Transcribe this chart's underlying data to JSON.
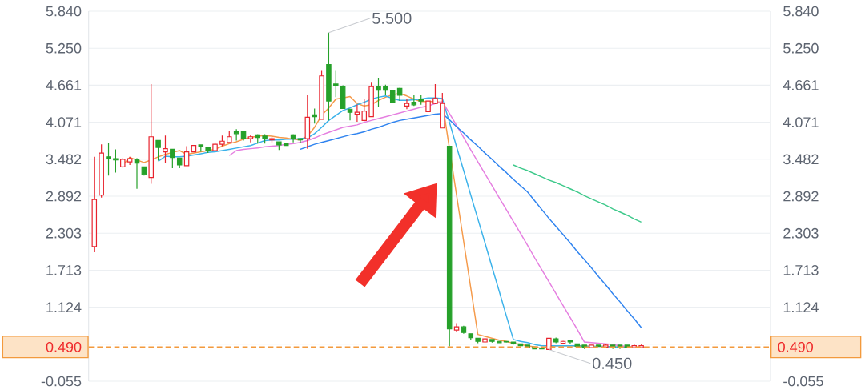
{
  "chart_data": {
    "type": "candlestick",
    "categories": [
      null,
      null,
      null,
      null,
      null,
      null,
      null,
      null,
      null,
      null,
      null,
      null,
      null,
      null,
      null,
      null,
      null,
      null,
      null,
      null,
      null,
      null,
      null,
      null,
      null,
      null,
      null,
      null,
      null,
      null,
      null,
      null,
      null,
      null,
      null,
      null,
      null,
      null,
      null,
      null,
      null,
      null,
      null,
      null,
      null,
      null,
      null,
      null,
      null,
      null,
      null,
      null,
      null,
      null,
      null,
      null,
      null,
      null,
      null,
      null,
      null,
      null,
      null,
      null,
      null,
      null,
      null,
      null,
      null,
      null,
      null,
      null,
      null,
      null,
      null,
      null,
      null,
      null
    ],
    "ohlc": [
      [
        2.09,
        3.52,
        2.0,
        2.84
      ],
      [
        2.91,
        3.72,
        2.87,
        3.58
      ],
      [
        3.52,
        3.74,
        3.22,
        3.49
      ],
      [
        3.49,
        3.64,
        3.27,
        3.47
      ],
      [
        3.36,
        3.5,
        3.35,
        3.48
      ],
      [
        3.44,
        3.52,
        3.39,
        3.49
      ],
      [
        3.48,
        3.5,
        3.01,
        3.42
      ],
      [
        3.36,
        3.36,
        3.22,
        3.24
      ],
      [
        3.19,
        4.68,
        3.09,
        3.84
      ],
      [
        3.78,
        3.78,
        3.46,
        3.67
      ],
      [
        3.6,
        3.86,
        3.42,
        3.65
      ],
      [
        3.64,
        3.64,
        3.34,
        3.51
      ],
      [
        3.5,
        3.5,
        3.34,
        3.39
      ],
      [
        3.38,
        3.69,
        3.38,
        3.6
      ],
      [
        3.6,
        3.71,
        3.6,
        3.7
      ],
      [
        3.71,
        3.71,
        3.6,
        3.68
      ],
      [
        3.67,
        3.67,
        3.58,
        3.62
      ],
      [
        3.62,
        3.75,
        3.62,
        3.72
      ],
      [
        3.72,
        3.86,
        3.69,
        3.77
      ],
      [
        3.75,
        3.94,
        3.74,
        3.84
      ],
      [
        3.92,
        3.96,
        3.78,
        3.89
      ],
      [
        3.92,
        3.92,
        3.78,
        3.81
      ],
      [
        3.81,
        3.87,
        3.75,
        3.84
      ],
      [
        3.87,
        3.88,
        3.73,
        3.83
      ],
      [
        3.85,
        3.88,
        3.73,
        3.82
      ],
      [
        3.79,
        3.84,
        3.75,
        3.81
      ],
      [
        3.76,
        3.76,
        3.63,
        3.71
      ],
      [
        3.73,
        3.73,
        3.7,
        3.7
      ],
      [
        3.87,
        3.88,
        3.75,
        3.82
      ],
      [
        3.81,
        3.81,
        3.74,
        3.79
      ],
      [
        3.81,
        4.5,
        3.65,
        4.15
      ],
      [
        4.19,
        4.29,
        4.05,
        4.16
      ],
      [
        4.12,
        4.89,
        4.11,
        4.81
      ],
      [
        4.99,
        5.5,
        4.1,
        4.41
      ],
      [
        4.68,
        4.89,
        4.47,
        4.65
      ],
      [
        4.64,
        4.66,
        4.29,
        4.29
      ],
      [
        4.28,
        4.28,
        4.1,
        4.23
      ],
      [
        4.2,
        4.35,
        4.08,
        4.23
      ],
      [
        4.1,
        4.45,
        4.09,
        4.25
      ],
      [
        4.16,
        4.7,
        4.16,
        4.64
      ],
      [
        4.64,
        4.78,
        4.31,
        4.58
      ],
      [
        4.64,
        4.67,
        4.5,
        4.58
      ],
      [
        4.57,
        4.57,
        4.38,
        4.39
      ],
      [
        4.61,
        4.62,
        4.41,
        4.5
      ],
      [
        4.33,
        4.45,
        4.28,
        4.37
      ],
      [
        4.39,
        4.5,
        4.33,
        4.35
      ],
      [
        4.43,
        4.5,
        4.35,
        4.41
      ],
      [
        4.24,
        4.41,
        4.24,
        4.41
      ],
      [
        4.37,
        4.68,
        4.36,
        4.45
      ],
      [
        3.98,
        4.54,
        3.98,
        4.37
      ],
      [
        3.69,
        3.69,
        0.5,
        0.78
      ],
      [
        0.76,
        0.87,
        0.73,
        0.81
      ],
      [
        0.81,
        0.83,
        0.7,
        0.72
      ],
      [
        0.7,
        0.7,
        0.6,
        0.64
      ],
      [
        0.63,
        0.63,
        0.55,
        0.58
      ],
      [
        0.57,
        0.63,
        0.56,
        0.62
      ],
      [
        0.61,
        0.61,
        0.56,
        0.58
      ],
      [
        0.58,
        0.58,
        0.55,
        0.56
      ],
      [
        0.58,
        0.58,
        0.56,
        0.57
      ],
      [
        0.57,
        0.57,
        0.53,
        0.54
      ],
      [
        0.54,
        0.54,
        0.5,
        0.51
      ],
      [
        0.52,
        0.52,
        0.47,
        0.48
      ],
      [
        0.49,
        0.49,
        0.46,
        0.46
      ],
      [
        0.47,
        0.47,
        0.46,
        0.46
      ],
      [
        0.45,
        0.63,
        0.45,
        0.63
      ],
      [
        0.62,
        0.64,
        0.55,
        0.57
      ],
      [
        0.55,
        0.59,
        0.55,
        0.58
      ],
      [
        0.59,
        0.59,
        0.54,
        0.57
      ],
      [
        0.54,
        0.54,
        0.48,
        0.5
      ],
      [
        0.52,
        0.52,
        0.46,
        0.49
      ],
      [
        0.48,
        0.52,
        0.47,
        0.52
      ],
      [
        0.52,
        0.52,
        0.5,
        0.5
      ],
      [
        0.49,
        0.54,
        0.48,
        0.52
      ],
      [
        0.52,
        0.52,
        0.46,
        0.49
      ],
      [
        0.52,
        0.52,
        0.46,
        0.49
      ],
      [
        0.52,
        0.52,
        0.47,
        0.49
      ],
      [
        0.48,
        0.54,
        0.47,
        0.51
      ],
      [
        0.48,
        0.53,
        0.47,
        0.51
      ]
    ],
    "colors": [
      "#e8232d",
      "#e8232d",
      "#26a12a",
      "#26a12a",
      "#e8232d",
      "#e8232d",
      "#26a12a",
      "#26a12a",
      "#e8232d",
      "#26a12a",
      "#e8232d",
      "#26a12a",
      "#26a12a",
      "#e8232d",
      "#e8232d",
      "#26a12a",
      "#26a12a",
      "#e8232d",
      "#e8232d",
      "#e8232d",
      "#26a12a",
      "#26a12a",
      "#e8232d",
      "#26a12a",
      "#26a12a",
      "#e8232d",
      "#26a12a",
      "#26a12a",
      "#26a12a",
      "#26a12a",
      "#e8232d",
      "#26a12a",
      "#e8232d",
      "#26a12a",
      "#26a12a",
      "#26a12a",
      "#26a12a",
      "#e8232d",
      "#e8232d",
      "#e8232d",
      "#26a12a",
      "#26a12a",
      "#26a12a",
      "#26a12a",
      "#e8232d",
      "#26a12a",
      "#26a12a",
      "#e8232d",
      "#e8232d",
      "#e8232d",
      "#26a12a",
      "#e8232d",
      "#26a12a",
      "#26a12a",
      "#26a12a",
      "#e8232d",
      "#26a12a",
      "#26a12a",
      "#26a12a",
      "#26a12a",
      "#26a12a",
      "#26a12a",
      "#26a12a",
      "#26a12a",
      "#e8232d",
      "#26a12a",
      "#e8232d",
      "#26a12a",
      "#26a12a",
      "#26a12a",
      "#e8232d",
      "#26a12a",
      "#e8232d",
      "#26a12a",
      "#26a12a",
      "#26a12a",
      "#e8232d",
      "#e8232d"
    ],
    "series": [
      {
        "type": "line",
        "color": "#f59a4a",
        "values": [
          null,
          null,
          null,
          null,
          3.39,
          3.51,
          3.47,
          3.43,
          3.47,
          3.52,
          3.56,
          3.59,
          3.62,
          3.56,
          3.58,
          3.6,
          3.62,
          3.64,
          3.69,
          3.73,
          3.76,
          3.8,
          3.83,
          3.85,
          3.86,
          3.85,
          3.83,
          3.82,
          3.8,
          3.79,
          3.85,
          3.99,
          4.18,
          4.3,
          4.44,
          4.46,
          4.48,
          4.37,
          4.33,
          4.35,
          4.42,
          4.47,
          4.51,
          4.53,
          4.49,
          4.44,
          4.4,
          4.4,
          4.4,
          4.39,
          3.65,
          2.91,
          2.17,
          1.43,
          0.69,
          0.66,
          0.63,
          0.6,
          0.58,
          0.55,
          0.53,
          0.51,
          0.49,
          0.47,
          0.49,
          0.51,
          0.51,
          0.51,
          0.51,
          0.51,
          0.5,
          0.5,
          0.5,
          0.49,
          0.49,
          0.49,
          0.48,
          0.48
        ]
      },
      {
        "type": "line",
        "color": "#3bb2ea",
        "values": [
          null,
          null,
          null,
          null,
          null,
          null,
          null,
          null,
          null,
          3.45,
          3.53,
          3.52,
          3.52,
          3.53,
          3.55,
          3.57,
          3.59,
          3.6,
          3.62,
          3.64,
          3.66,
          3.68,
          3.7,
          3.74,
          3.78,
          3.79,
          3.79,
          3.8,
          3.8,
          3.81,
          3.82,
          3.89,
          3.99,
          4.1,
          4.18,
          4.26,
          4.3,
          4.35,
          4.39,
          4.44,
          4.47,
          4.49,
          4.45,
          4.42,
          4.42,
          4.43,
          4.44,
          4.46,
          4.46,
          4.45,
          4.07,
          3.68,
          3.3,
          2.91,
          2.53,
          2.15,
          1.76,
          1.38,
          0.99,
          0.61,
          0.58,
          0.56,
          0.53,
          0.51,
          0.51,
          0.51,
          0.51,
          0.51,
          0.51,
          0.5,
          0.5,
          0.5,
          0.5,
          0.49,
          0.49,
          0.49,
          null,
          null
        ]
      },
      {
        "type": "line",
        "color": "#e57fe0",
        "values": [
          null,
          null,
          null,
          null,
          null,
          null,
          null,
          null,
          null,
          null,
          null,
          null,
          null,
          null,
          null,
          null,
          null,
          null,
          null,
          3.54,
          3.62,
          3.64,
          3.65,
          3.66,
          3.68,
          3.69,
          3.7,
          3.72,
          3.73,
          3.75,
          3.78,
          3.82,
          3.87,
          3.91,
          3.95,
          3.99,
          4.01,
          4.03,
          4.07,
          4.1,
          4.13,
          4.16,
          4.19,
          4.22,
          4.25,
          4.28,
          4.31,
          4.33,
          4.37,
          4.4,
          4.21,
          4.02,
          3.83,
          3.63,
          3.44,
          3.25,
          3.06,
          2.87,
          2.68,
          2.49,
          2.3,
          2.11,
          1.91,
          1.72,
          1.53,
          1.34,
          1.15,
          0.96,
          0.77,
          0.57,
          0.56,
          0.55,
          0.54,
          0.53,
          0.51,
          0.5,
          0.49,
          0.48
        ]
      },
      {
        "type": "line",
        "color": "#2f83ef",
        "values": [
          null,
          null,
          null,
          null,
          null,
          null,
          null,
          null,
          null,
          null,
          null,
          null,
          null,
          null,
          null,
          null,
          null,
          null,
          null,
          null,
          null,
          null,
          null,
          null,
          null,
          null,
          null,
          null,
          null,
          3.64,
          3.68,
          3.72,
          3.75,
          3.78,
          3.81,
          3.84,
          3.87,
          3.89,
          3.92,
          3.96,
          3.99,
          4.03,
          4.07,
          4.1,
          4.12,
          4.14,
          4.16,
          4.18,
          4.2,
          4.21,
          4.11,
          4.0,
          3.9,
          3.79,
          3.69,
          3.58,
          3.48,
          3.37,
          3.27,
          3.16,
          3.06,
          2.96,
          2.82,
          2.68,
          2.54,
          2.41,
          2.28,
          2.15,
          2.01,
          1.88,
          1.75,
          1.61,
          1.48,
          1.34,
          1.21,
          1.07,
          0.94,
          0.8
        ]
      },
      {
        "type": "line",
        "color": "#3ec98b",
        "values": [
          null,
          null,
          null,
          null,
          null,
          null,
          null,
          null,
          null,
          null,
          null,
          null,
          null,
          null,
          null,
          null,
          null,
          null,
          null,
          null,
          null,
          null,
          null,
          null,
          null,
          null,
          null,
          null,
          null,
          null,
          null,
          null,
          null,
          null,
          null,
          null,
          null,
          null,
          null,
          null,
          null,
          null,
          null,
          null,
          null,
          null,
          null,
          null,
          null,
          null,
          null,
          null,
          null,
          null,
          null,
          null,
          null,
          null,
          null,
          3.39,
          3.34,
          3.3,
          3.25,
          3.2,
          3.15,
          3.11,
          3.06,
          3.01,
          2.96,
          2.9,
          2.85,
          2.8,
          2.75,
          2.69,
          2.64,
          2.59,
          2.53,
          2.48
        ]
      }
    ],
    "ylim": [
      -0.055,
      5.84
    ],
    "yticks": [
      -0.055,
      {
        "value": 0.5345,
        "label": null
      },
      1.124,
      1.713,
      2.303,
      2.892,
      3.482,
      4.071,
      4.661,
      {
        "value": 5.25,
        "label": "5.250"
      },
      {
        "value": 5.84,
        "label": "5.840"
      }
    ],
    "y2lim": [
      -0.055,
      5.84
    ],
    "y2ticks": [
      -0.055,
      {
        "value": 0.5345,
        "label": null
      },
      1.124,
      1.713,
      2.303,
      2.892,
      3.482,
      4.071,
      4.661,
      {
        "value": 5.25,
        "label": "5.250"
      },
      {
        "value": 5.84,
        "label": "5.840"
      }
    ],
    "tick_labels": "y",
    "grid": "y",
    "ref_lines": [
      {
        "axis": "y",
        "value": 0.49,
        "label": "0.490",
        "color": "#f39a3d",
        "line_style": "dashed"
      }
    ],
    "annotations": [
      "5.500",
      {
        "text": "0.450",
        "y": 0.45
      }
    ]
  }
}
